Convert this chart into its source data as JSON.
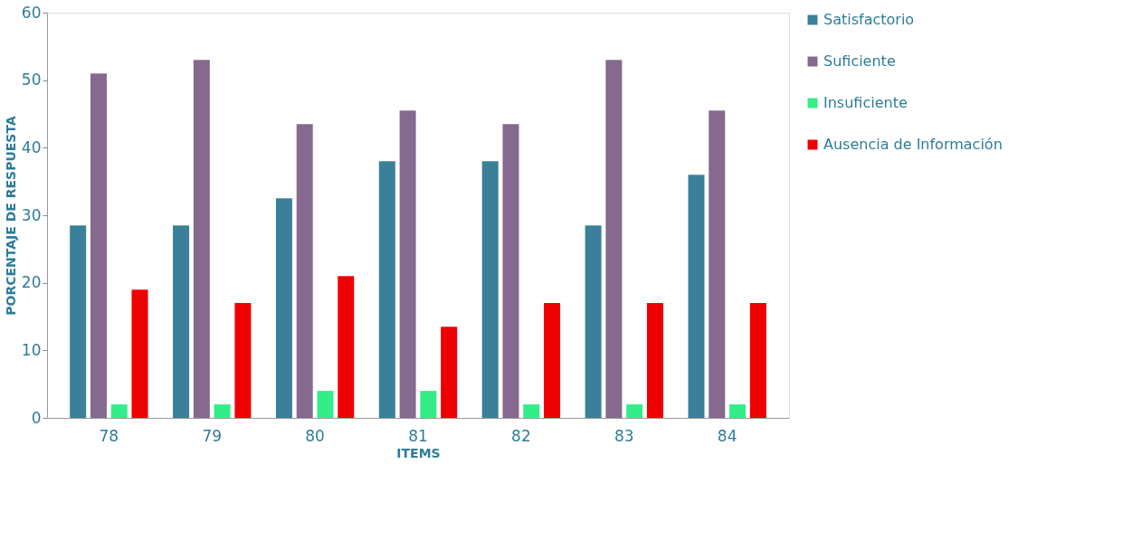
{
  "chart_data": {
    "type": "bar",
    "xlabel": "ITEMS",
    "ylabel": "PORCENTAJE DE RESPUESTA",
    "categories": [
      "78",
      "79",
      "80",
      "81",
      "82",
      "83",
      "84"
    ],
    "series": [
      {
        "name": "Satisfactorio",
        "color": "#3a8099",
        "values": [
          28.5,
          28.5,
          32.5,
          38,
          38,
          28.5,
          36
        ]
      },
      {
        "name": "Suficiente",
        "color": "#85698f",
        "values": [
          51,
          53,
          43.5,
          45.5,
          43.5,
          53,
          45.5
        ]
      },
      {
        "name": "Insuficiente",
        "color": "#33ee88",
        "values": [
          2,
          2,
          4,
          4,
          2,
          2,
          2
        ]
      },
      {
        "name": "Ausencia de Información",
        "color": "#ee0000",
        "values": [
          19,
          17,
          21,
          13.5,
          17,
          17,
          17
        ]
      }
    ],
    "ylim": [
      0,
      60
    ],
    "yticks": [
      0,
      10,
      20,
      30,
      40,
      50,
      60
    ],
    "grid": false,
    "legend": "right"
  }
}
